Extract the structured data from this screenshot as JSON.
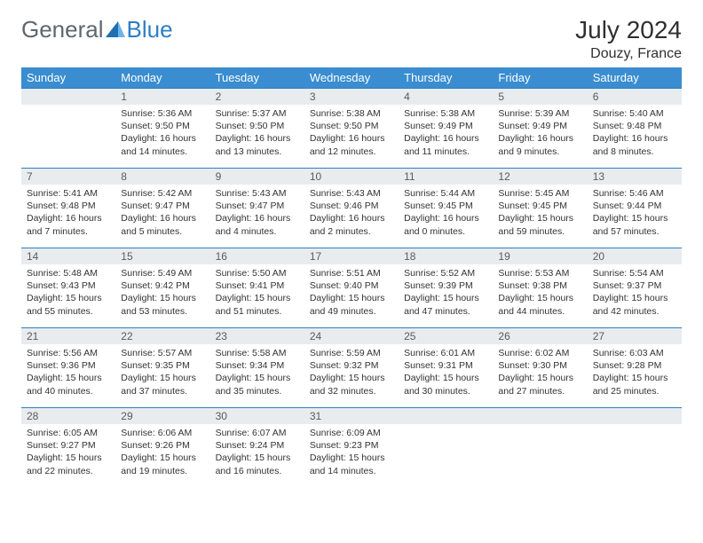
{
  "logo": {
    "part1": "General",
    "part2": "Blue"
  },
  "title": "July 2024",
  "location": "Douzy, France",
  "colors": {
    "header_bg": "#3a8dd0",
    "header_text": "#ffffff",
    "daynum_bg": "#e9ecef",
    "rule": "#2d7fc4",
    "logo_gray": "#5e6770",
    "logo_blue": "#2d7fc4"
  },
  "weekdays": [
    "Sunday",
    "Monday",
    "Tuesday",
    "Wednesday",
    "Thursday",
    "Friday",
    "Saturday"
  ],
  "weeks": [
    [
      {
        "n": "",
        "sr": "",
        "ss": "",
        "dl": ""
      },
      {
        "n": "1",
        "sr": "Sunrise: 5:36 AM",
        "ss": "Sunset: 9:50 PM",
        "dl": "Daylight: 16 hours and 14 minutes."
      },
      {
        "n": "2",
        "sr": "Sunrise: 5:37 AM",
        "ss": "Sunset: 9:50 PM",
        "dl": "Daylight: 16 hours and 13 minutes."
      },
      {
        "n": "3",
        "sr": "Sunrise: 5:38 AM",
        "ss": "Sunset: 9:50 PM",
        "dl": "Daylight: 16 hours and 12 minutes."
      },
      {
        "n": "4",
        "sr": "Sunrise: 5:38 AM",
        "ss": "Sunset: 9:49 PM",
        "dl": "Daylight: 16 hours and 11 minutes."
      },
      {
        "n": "5",
        "sr": "Sunrise: 5:39 AM",
        "ss": "Sunset: 9:49 PM",
        "dl": "Daylight: 16 hours and 9 minutes."
      },
      {
        "n": "6",
        "sr": "Sunrise: 5:40 AM",
        "ss": "Sunset: 9:48 PM",
        "dl": "Daylight: 16 hours and 8 minutes."
      }
    ],
    [
      {
        "n": "7",
        "sr": "Sunrise: 5:41 AM",
        "ss": "Sunset: 9:48 PM",
        "dl": "Daylight: 16 hours and 7 minutes."
      },
      {
        "n": "8",
        "sr": "Sunrise: 5:42 AM",
        "ss": "Sunset: 9:47 PM",
        "dl": "Daylight: 16 hours and 5 minutes."
      },
      {
        "n": "9",
        "sr": "Sunrise: 5:43 AM",
        "ss": "Sunset: 9:47 PM",
        "dl": "Daylight: 16 hours and 4 minutes."
      },
      {
        "n": "10",
        "sr": "Sunrise: 5:43 AM",
        "ss": "Sunset: 9:46 PM",
        "dl": "Daylight: 16 hours and 2 minutes."
      },
      {
        "n": "11",
        "sr": "Sunrise: 5:44 AM",
        "ss": "Sunset: 9:45 PM",
        "dl": "Daylight: 16 hours and 0 minutes."
      },
      {
        "n": "12",
        "sr": "Sunrise: 5:45 AM",
        "ss": "Sunset: 9:45 PM",
        "dl": "Daylight: 15 hours and 59 minutes."
      },
      {
        "n": "13",
        "sr": "Sunrise: 5:46 AM",
        "ss": "Sunset: 9:44 PM",
        "dl": "Daylight: 15 hours and 57 minutes."
      }
    ],
    [
      {
        "n": "14",
        "sr": "Sunrise: 5:48 AM",
        "ss": "Sunset: 9:43 PM",
        "dl": "Daylight: 15 hours and 55 minutes."
      },
      {
        "n": "15",
        "sr": "Sunrise: 5:49 AM",
        "ss": "Sunset: 9:42 PM",
        "dl": "Daylight: 15 hours and 53 minutes."
      },
      {
        "n": "16",
        "sr": "Sunrise: 5:50 AM",
        "ss": "Sunset: 9:41 PM",
        "dl": "Daylight: 15 hours and 51 minutes."
      },
      {
        "n": "17",
        "sr": "Sunrise: 5:51 AM",
        "ss": "Sunset: 9:40 PM",
        "dl": "Daylight: 15 hours and 49 minutes."
      },
      {
        "n": "18",
        "sr": "Sunrise: 5:52 AM",
        "ss": "Sunset: 9:39 PM",
        "dl": "Daylight: 15 hours and 47 minutes."
      },
      {
        "n": "19",
        "sr": "Sunrise: 5:53 AM",
        "ss": "Sunset: 9:38 PM",
        "dl": "Daylight: 15 hours and 44 minutes."
      },
      {
        "n": "20",
        "sr": "Sunrise: 5:54 AM",
        "ss": "Sunset: 9:37 PM",
        "dl": "Daylight: 15 hours and 42 minutes."
      }
    ],
    [
      {
        "n": "21",
        "sr": "Sunrise: 5:56 AM",
        "ss": "Sunset: 9:36 PM",
        "dl": "Daylight: 15 hours and 40 minutes."
      },
      {
        "n": "22",
        "sr": "Sunrise: 5:57 AM",
        "ss": "Sunset: 9:35 PM",
        "dl": "Daylight: 15 hours and 37 minutes."
      },
      {
        "n": "23",
        "sr": "Sunrise: 5:58 AM",
        "ss": "Sunset: 9:34 PM",
        "dl": "Daylight: 15 hours and 35 minutes."
      },
      {
        "n": "24",
        "sr": "Sunrise: 5:59 AM",
        "ss": "Sunset: 9:32 PM",
        "dl": "Daylight: 15 hours and 32 minutes."
      },
      {
        "n": "25",
        "sr": "Sunrise: 6:01 AM",
        "ss": "Sunset: 9:31 PM",
        "dl": "Daylight: 15 hours and 30 minutes."
      },
      {
        "n": "26",
        "sr": "Sunrise: 6:02 AM",
        "ss": "Sunset: 9:30 PM",
        "dl": "Daylight: 15 hours and 27 minutes."
      },
      {
        "n": "27",
        "sr": "Sunrise: 6:03 AM",
        "ss": "Sunset: 9:28 PM",
        "dl": "Daylight: 15 hours and 25 minutes."
      }
    ],
    [
      {
        "n": "28",
        "sr": "Sunrise: 6:05 AM",
        "ss": "Sunset: 9:27 PM",
        "dl": "Daylight: 15 hours and 22 minutes."
      },
      {
        "n": "29",
        "sr": "Sunrise: 6:06 AM",
        "ss": "Sunset: 9:26 PM",
        "dl": "Daylight: 15 hours and 19 minutes."
      },
      {
        "n": "30",
        "sr": "Sunrise: 6:07 AM",
        "ss": "Sunset: 9:24 PM",
        "dl": "Daylight: 15 hours and 16 minutes."
      },
      {
        "n": "31",
        "sr": "Sunrise: 6:09 AM",
        "ss": "Sunset: 9:23 PM",
        "dl": "Daylight: 15 hours and 14 minutes."
      },
      {
        "n": "",
        "sr": "",
        "ss": "",
        "dl": ""
      },
      {
        "n": "",
        "sr": "",
        "ss": "",
        "dl": ""
      },
      {
        "n": "",
        "sr": "",
        "ss": "",
        "dl": ""
      }
    ]
  ]
}
